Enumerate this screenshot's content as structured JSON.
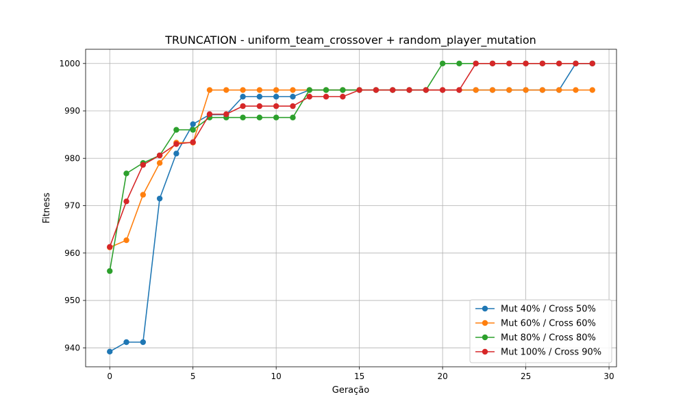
{
  "chart_data": {
    "type": "line",
    "title": "TRUNCATION - uniform_team_crossover + random_player_mutation",
    "xlabel": "Geração",
    "ylabel": "Fitness",
    "xlim": [
      -1.45,
      30.45
    ],
    "ylim": [
      936.0,
      1003.0
    ],
    "xticks": [
      0,
      5,
      10,
      15,
      20,
      25,
      30
    ],
    "yticks": [
      940,
      950,
      960,
      970,
      980,
      990,
      1000
    ],
    "grid": true,
    "legend_position": "lower-right",
    "x": [
      0,
      1,
      2,
      3,
      4,
      5,
      6,
      7,
      8,
      9,
      10,
      11,
      12,
      13,
      14,
      15,
      16,
      17,
      18,
      19,
      20,
      21,
      22,
      23,
      24,
      25,
      26,
      27,
      28,
      29
    ],
    "series": [
      {
        "name": "Mut 40% / Cross 50%",
        "color": "#1f77b4",
        "values": [
          939.2,
          941.2,
          941.2,
          971.5,
          981.0,
          987.2,
          989.2,
          989.2,
          993.0,
          993.0,
          993.0,
          993.0,
          994.4,
          994.4,
          994.4,
          994.4,
          994.4,
          994.4,
          994.4,
          994.4,
          994.4,
          994.4,
          994.4,
          994.4,
          994.4,
          994.4,
          994.4,
          994.4,
          1000.0,
          1000.0
        ]
      },
      {
        "name": "Mut 60% / Cross 60%",
        "color": "#ff7f0e",
        "values": [
          961.2,
          962.7,
          972.3,
          979.0,
          983.3,
          983.3,
          994.4,
          994.4,
          994.4,
          994.4,
          994.4,
          994.4,
          994.4,
          994.4,
          994.4,
          994.4,
          994.4,
          994.4,
          994.4,
          994.4,
          994.4,
          994.4,
          994.4,
          994.4,
          994.4,
          994.4,
          994.4,
          994.4,
          994.4,
          994.4
        ]
      },
      {
        "name": "Mut 80% / Cross 80%",
        "color": "#2ca02c",
        "values": [
          956.2,
          976.8,
          979.0,
          980.6,
          986.0,
          986.0,
          988.6,
          988.6,
          988.6,
          988.6,
          988.6,
          988.6,
          994.4,
          994.4,
          994.4,
          994.4,
          994.4,
          994.4,
          994.4,
          994.4,
          1000.0,
          1000.0,
          1000.0,
          1000.0,
          1000.0,
          1000.0,
          1000.0,
          1000.0,
          1000.0,
          1000.0
        ]
      },
      {
        "name": "Mut 100% / Cross 90%",
        "color": "#d62728",
        "values": [
          961.3,
          970.9,
          978.6,
          980.6,
          983.0,
          983.4,
          989.3,
          989.3,
          991.0,
          991.0,
          991.0,
          991.0,
          993.0,
          993.0,
          993.0,
          994.4,
          994.4,
          994.4,
          994.4,
          994.4,
          994.4,
          994.4,
          1000.0,
          1000.0,
          1000.0,
          1000.0,
          1000.0,
          1000.0,
          1000.0,
          1000.0
        ]
      }
    ]
  }
}
